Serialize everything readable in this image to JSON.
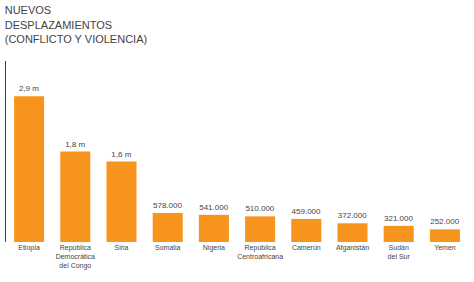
{
  "chart_data": {
    "type": "bar",
    "title": "NUEVOS\nDESPLAZAMIENTOS\n(CONFLICTO Y VIOLENCIA)",
    "categories": [
      "Etiopía",
      "República\nDemocrática\ndel Congo",
      "Siria",
      "Somalia",
      "Nigeria",
      "República\nCentroafricana",
      "Camerún",
      "Afganistán",
      "Sudán\ndel Sur",
      "Yemen"
    ],
    "values": [
      2900000,
      1800000,
      1600000,
      578000,
      541000,
      510000,
      459000,
      372000,
      321000,
      252000
    ],
    "value_labels": [
      "2,9 m",
      "1,8 m",
      "1,6 m",
      "578.000",
      "541.000",
      "510.000",
      "459.000",
      "372.000",
      "321.000",
      "252.000"
    ],
    "data_labels": true,
    "color": "#F7941D",
    "ylim": [
      0,
      3600000
    ],
    "grid": false,
    "tick_labels": "x"
  }
}
